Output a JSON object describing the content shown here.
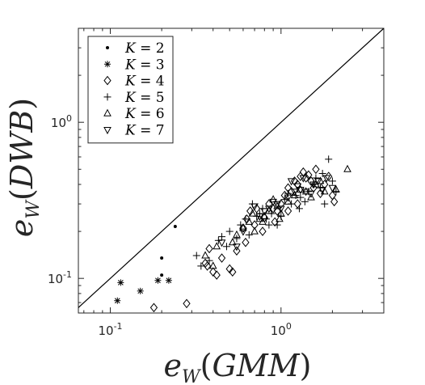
{
  "chart_data": {
    "type": "scatter",
    "xlabel": {
      "base": "e",
      "sub": "W",
      "arg": "GMM"
    },
    "ylabel": {
      "base": "e",
      "sub": "W",
      "arg": "DWB"
    },
    "xscale": "log",
    "yscale": "log",
    "xlim": [
      0.065,
      4.0
    ],
    "ylim": [
      0.06,
      4.0
    ],
    "xticks": [
      {
        "value": 0.1,
        "base": "10",
        "exp": "-1"
      },
      {
        "value": 1.0,
        "base": "10",
        "exp": "0"
      }
    ],
    "yticks": [
      {
        "value": 0.1,
        "base": "10",
        "exp": "-1"
      },
      {
        "value": 1.0,
        "base": "10",
        "exp": "0"
      }
    ],
    "grid": false,
    "legend_position": "top-left",
    "reference_line": "y = x",
    "series": [
      {
        "name": "K = 2",
        "marker": "dot",
        "points": [
          [
            0.24,
            0.215
          ],
          [
            0.2,
            0.135
          ],
          [
            0.2,
            0.105
          ]
        ]
      },
      {
        "name": "K = 3",
        "marker": "asterisk",
        "points": [
          [
            0.11,
            0.072
          ],
          [
            0.115,
            0.094
          ],
          [
            0.15,
            0.083
          ],
          [
            0.19,
            0.097
          ],
          [
            0.22,
            0.097
          ]
        ]
      },
      {
        "name": "K = 4",
        "marker": "diamond",
        "points": [
          [
            0.18,
            0.065
          ],
          [
            0.28,
            0.069
          ],
          [
            0.36,
            0.125
          ],
          [
            0.37,
            0.12
          ],
          [
            0.38,
            0.155
          ],
          [
            0.4,
            0.11
          ],
          [
            0.42,
            0.105
          ],
          [
            0.45,
            0.135
          ],
          [
            0.5,
            0.115
          ],
          [
            0.52,
            0.11
          ],
          [
            0.55,
            0.15
          ],
          [
            0.6,
            0.21
          ],
          [
            0.63,
            0.24
          ],
          [
            0.66,
            0.27
          ],
          [
            0.7,
            0.22
          ],
          [
            0.72,
            0.28
          ],
          [
            0.78,
            0.2
          ],
          [
            0.8,
            0.245
          ],
          [
            0.85,
            0.3
          ],
          [
            0.9,
            0.28
          ],
          [
            0.95,
            0.27
          ],
          [
            1.0,
            0.3
          ],
          [
            1.05,
            0.34
          ],
          [
            1.1,
            0.38
          ],
          [
            1.15,
            0.36
          ],
          [
            1.2,
            0.42
          ],
          [
            1.25,
            0.4
          ],
          [
            1.3,
            0.45
          ],
          [
            1.35,
            0.48
          ],
          [
            1.4,
            0.44
          ],
          [
            1.45,
            0.46
          ],
          [
            1.5,
            0.42
          ],
          [
            1.55,
            0.38
          ],
          [
            1.6,
            0.5
          ],
          [
            1.7,
            0.35
          ],
          [
            1.8,
            0.4
          ],
          [
            1.9,
            0.45
          ],
          [
            2.0,
            0.34
          ],
          [
            2.05,
            0.31
          ],
          [
            1.25,
            0.3
          ],
          [
            1.1,
            0.27
          ],
          [
            0.92,
            0.23
          ],
          [
            0.62,
            0.17
          ]
        ]
      },
      {
        "name": "K = 5",
        "marker": "plus",
        "points": [
          [
            0.32,
            0.14
          ],
          [
            0.34,
            0.12
          ],
          [
            0.38,
            0.13
          ],
          [
            0.43,
            0.175
          ],
          [
            0.45,
            0.185
          ],
          [
            0.48,
            0.16
          ],
          [
            0.5,
            0.2
          ],
          [
            0.55,
            0.18
          ],
          [
            0.58,
            0.22
          ],
          [
            0.62,
            0.24
          ],
          [
            0.65,
            0.19
          ],
          [
            0.68,
            0.3
          ],
          [
            0.72,
            0.25
          ],
          [
            0.78,
            0.28
          ],
          [
            0.82,
            0.24
          ],
          [
            0.88,
            0.26
          ],
          [
            0.95,
            0.22
          ],
          [
            1.0,
            0.25
          ],
          [
            1.05,
            0.32
          ],
          [
            1.1,
            0.35
          ],
          [
            1.15,
            0.3
          ],
          [
            1.22,
            0.34
          ],
          [
            1.3,
            0.33
          ],
          [
            1.38,
            0.31
          ],
          [
            1.45,
            0.36
          ],
          [
            1.55,
            0.4
          ],
          [
            1.6,
            0.44
          ],
          [
            1.7,
            0.38
          ],
          [
            1.75,
            0.47
          ],
          [
            1.8,
            0.3
          ],
          [
            1.9,
            0.58
          ],
          [
            2.0,
            0.42
          ],
          [
            2.1,
            0.36
          ],
          [
            0.75,
            0.26
          ],
          [
            0.85,
            0.22
          ],
          [
            1.28,
            0.28
          ]
        ]
      },
      {
        "name": "K = 6",
        "marker": "triangle-up",
        "points": [
          [
            0.36,
            0.14
          ],
          [
            0.4,
            0.12
          ],
          [
            0.42,
            0.16
          ],
          [
            0.52,
            0.17
          ],
          [
            0.55,
            0.19
          ],
          [
            0.6,
            0.21
          ],
          [
            0.65,
            0.23
          ],
          [
            0.68,
            0.26
          ],
          [
            0.7,
            0.2
          ],
          [
            0.75,
            0.24
          ],
          [
            0.8,
            0.25
          ],
          [
            0.85,
            0.27
          ],
          [
            0.9,
            0.32
          ],
          [
            0.95,
            0.29
          ],
          [
            1.0,
            0.26
          ],
          [
            1.1,
            0.31
          ],
          [
            1.2,
            0.34
          ],
          [
            1.3,
            0.37
          ],
          [
            1.4,
            0.36
          ],
          [
            1.5,
            0.33
          ],
          [
            1.6,
            0.4
          ],
          [
            1.7,
            0.42
          ],
          [
            1.8,
            0.36
          ],
          [
            2.1,
            0.37
          ],
          [
            2.45,
            0.5
          ],
          [
            0.78,
            0.23
          ],
          [
            0.98,
            0.24
          ]
        ]
      },
      {
        "name": "K = 7",
        "marker": "triangle-down",
        "points": [
          [
            0.45,
            0.17
          ],
          [
            0.55,
            0.16
          ],
          [
            0.6,
            0.2
          ],
          [
            0.7,
            0.29
          ],
          [
            0.75,
            0.25
          ],
          [
            0.8,
            0.27
          ],
          [
            0.85,
            0.28
          ],
          [
            0.9,
            0.31
          ],
          [
            0.95,
            0.3
          ],
          [
            1.0,
            0.28
          ],
          [
            1.1,
            0.33
          ],
          [
            1.2,
            0.36
          ],
          [
            1.25,
            0.39
          ],
          [
            1.3,
            0.37
          ],
          [
            1.4,
            0.36
          ],
          [
            1.5,
            0.35
          ],
          [
            1.55,
            0.4
          ],
          [
            1.65,
            0.42
          ],
          [
            1.75,
            0.37
          ],
          [
            1.85,
            0.44
          ],
          [
            2.0,
            0.38
          ],
          [
            1.35,
            0.44
          ],
          [
            1.15,
            0.42
          ]
        ]
      }
    ]
  }
}
